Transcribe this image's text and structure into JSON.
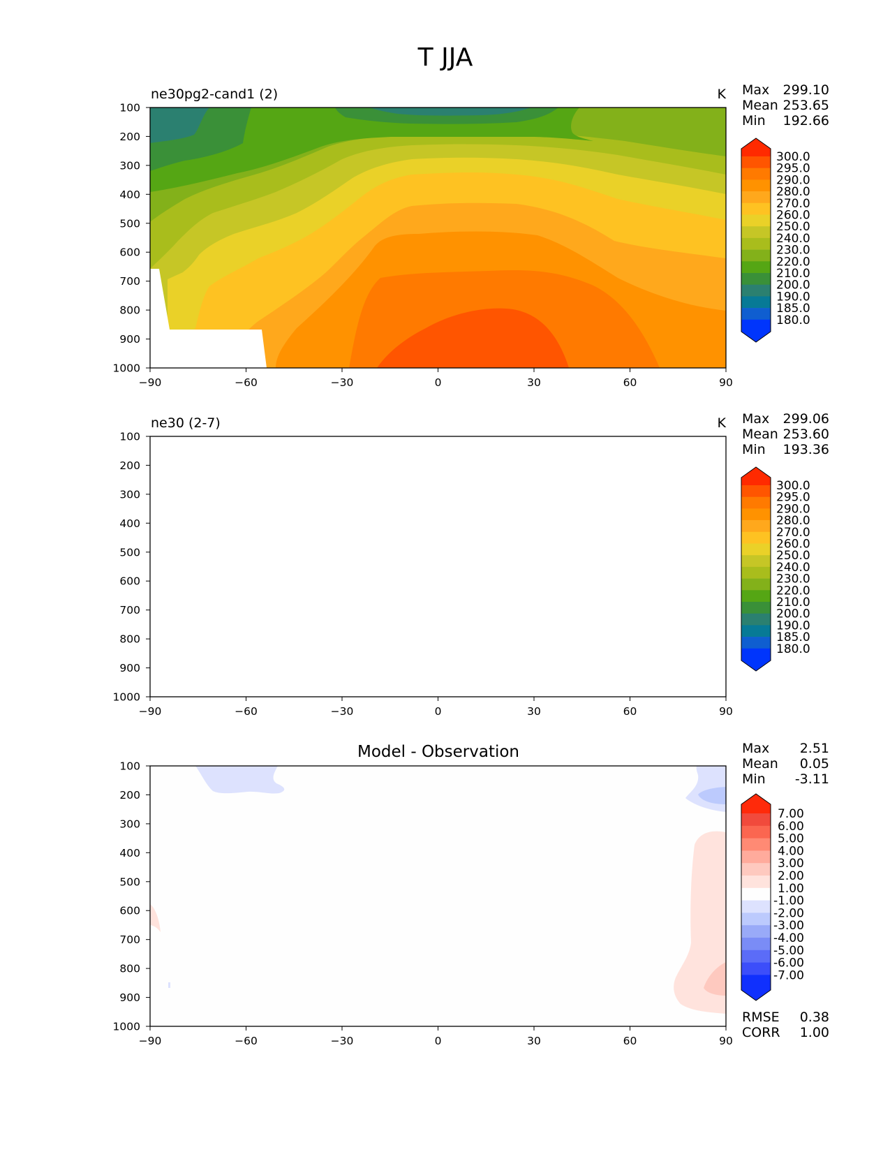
{
  "title": "T JJA",
  "panels": [
    {
      "id": "p1",
      "left_title": "ne30pg2-cand1 (2)",
      "center_title": "",
      "units": "K",
      "stats": [
        {
          "label": "Max",
          "value": "299.10"
        },
        {
          "label": "Mean",
          "value": "253.65"
        },
        {
          "label": "Min",
          "value": "192.66"
        }
      ],
      "colorbar_labels": [
        "300.0",
        "295.0",
        "290.0",
        "280.0",
        "270.0",
        "260.0",
        "250.0",
        "240.0",
        "230.0",
        "220.0",
        "210.0",
        "200.0",
        "190.0",
        "185.0",
        "180.0"
      ],
      "colorbar_colors": [
        "#ff2a00",
        "#ff5500",
        "#ff7a00",
        "#ff9200",
        "#ffa81c",
        "#fec222",
        "#ead128",
        "#c6c626",
        "#a9bd1c",
        "#83b11a",
        "#55a614",
        "#3a9038",
        "#2b8070",
        "#077a96",
        "#0f5ed0",
        "#0035fc"
      ],
      "footer_stats": []
    },
    {
      "id": "p2",
      "left_title": "ne30 (2-7)",
      "center_title": "",
      "units": "K",
      "stats": [
        {
          "label": "Max",
          "value": "299.06"
        },
        {
          "label": "Mean",
          "value": "253.60"
        },
        {
          "label": "Min",
          "value": "193.36"
        }
      ],
      "colorbar_labels": [
        "300.0",
        "295.0",
        "290.0",
        "280.0",
        "270.0",
        "260.0",
        "250.0",
        "240.0",
        "230.0",
        "220.0",
        "210.0",
        "200.0",
        "190.0",
        "185.0",
        "180.0"
      ],
      "colorbar_colors": [
        "#ff2a00",
        "#ff5500",
        "#ff7a00",
        "#ff9200",
        "#ffa81c",
        "#fec222",
        "#ead128",
        "#c6c626",
        "#a9bd1c",
        "#83b11a",
        "#55a614",
        "#3a9038",
        "#2b8070",
        "#077a96",
        "#0f5ed0",
        "#0035fc"
      ],
      "footer_stats": []
    },
    {
      "id": "p3",
      "left_title": "",
      "center_title": "Model - Observation",
      "units": "",
      "stats": [
        {
          "label": "Max",
          "value": "2.51"
        },
        {
          "label": "Mean",
          "value": "0.05"
        },
        {
          "label": "Min",
          "value": "-3.11"
        }
      ],
      "colorbar_labels": [
        "7.00",
        "6.00",
        "5.00",
        "4.00",
        "3.00",
        "2.00",
        "1.00",
        "-1.00",
        "-2.00",
        "-3.00",
        "-4.00",
        "-5.00",
        "-6.00",
        "-7.00"
      ],
      "colorbar_colors": [
        "#ff2a0a",
        "#f14a3c",
        "#fb6650",
        "#ff8a74",
        "#ffab9c",
        "#fec9bf",
        "#ffe3dd",
        "#fefefe",
        "#dde2fe",
        "#bccafd",
        "#99aaf8",
        "#7a8cf6",
        "#5b6cf8",
        "#3c4efa",
        "#1030fd"
      ],
      "footer_stats": [
        {
          "label": "RMSE",
          "value": "0.38"
        },
        {
          "label": "CORR",
          "value": "1.00"
        }
      ]
    }
  ],
  "chart_data": [
    {
      "type": "heatmap",
      "subtype": "filled-contour",
      "title": "ne30pg2-cand1 (2)",
      "units": "K",
      "x": [
        -90,
        -60,
        -30,
        0,
        30,
        60,
        90
      ],
      "xlabel": "",
      "ylabel": "",
      "xlim": [
        -90,
        90
      ],
      "ylim": [
        1000,
        100
      ],
      "xticks": [
        "−90",
        "−60",
        "−30",
        "0",
        "30",
        "60",
        "90"
      ],
      "yticks": [
        "100",
        "200",
        "300",
        "400",
        "500",
        "600",
        "700",
        "800",
        "900",
        "1000"
      ],
      "levels": [
        180,
        185,
        190,
        200,
        210,
        220,
        230,
        240,
        250,
        260,
        270,
        280,
        290,
        295,
        300
      ],
      "max": 299.1,
      "mean": 253.65,
      "min": 192.66
    },
    {
      "type": "heatmap",
      "subtype": "filled-contour",
      "title": "ne30 (2-7)",
      "units": "K",
      "x": [
        -90,
        -60,
        -30,
        0,
        30,
        60,
        90
      ],
      "xlim": [
        -90,
        90
      ],
      "ylim": [
        1000,
        100
      ],
      "xticks": [
        "−90",
        "−60",
        "−30",
        "0",
        "30",
        "60",
        "90"
      ],
      "yticks": [
        "100",
        "200",
        "300",
        "400",
        "500",
        "600",
        "700",
        "800",
        "900",
        "1000"
      ],
      "levels": [
        180,
        185,
        190,
        200,
        210,
        220,
        230,
        240,
        250,
        260,
        270,
        280,
        290,
        295,
        300
      ],
      "max": 299.06,
      "mean": 253.6,
      "min": 193.36
    },
    {
      "type": "heatmap",
      "subtype": "filled-contour",
      "title": "Model - Observation",
      "units": "",
      "x": [
        -90,
        -60,
        -30,
        0,
        30,
        60,
        90
      ],
      "xlim": [
        -90,
        90
      ],
      "ylim": [
        1000,
        100
      ],
      "xticks": [
        "−90",
        "−60",
        "−30",
        "0",
        "30",
        "60",
        "90"
      ],
      "yticks": [
        "100",
        "200",
        "300",
        "400",
        "500",
        "600",
        "700",
        "800",
        "900",
        "1000"
      ],
      "levels": [
        -7,
        -6,
        -5,
        -4,
        -3,
        -2,
        -1,
        1,
        2,
        3,
        4,
        5,
        6,
        7
      ],
      "max": 2.51,
      "mean": 0.05,
      "min": -3.11,
      "rmse": 0.38,
      "corr": 1.0
    }
  ]
}
